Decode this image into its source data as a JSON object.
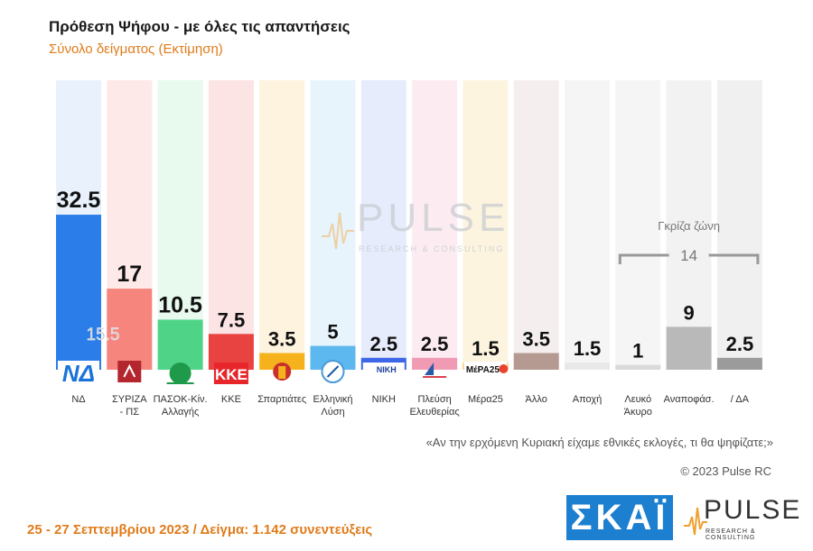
{
  "header": {
    "title": "Πρόθεση Ψήφου - με όλες τις απαντήσεις",
    "subtitle": "Σύνολο δείγματος   (Εκτίμηση)"
  },
  "chart_data": {
    "type": "bar",
    "title": "Πρόθεση Ψήφου - με όλες τις απαντήσεις",
    "subtitle": "Σύνολο δείγματος   (Εκτίμηση)",
    "categories": [
      "ΝΔ",
      "ΣΥΡΙΖΑ\n- ΠΣ",
      "ΠΑΣΟΚ-Κίν.\nΑλλαγής",
      "ΚΚΕ",
      "Σπαρτιάτες",
      "Ελληνική\nΛύση",
      "ΝΙΚΗ",
      "Πλεύση\nΕλευθερίας",
      "Μέρα25",
      "Άλλο",
      "Αποχή",
      "Λευκό\nΆκυρο",
      "Αναποφάσ.",
      "/ ΔΑ"
    ],
    "values": [
      32.5,
      17,
      10.5,
      7.5,
      3.5,
      5,
      2.5,
      2.5,
      1.5,
      3.5,
      1.5,
      1,
      9,
      2.5
    ],
    "value_labels": [
      "32.5",
      "17",
      "10.5",
      "7.5",
      "3.5",
      "5",
      "2.5",
      "2.5",
      "1.5",
      "3.5",
      "1.5",
      "1",
      "9",
      "2.5"
    ],
    "colors": [
      "#2b7de9",
      "#f5857d",
      "#4fd487",
      "#e94341",
      "#f5b21d",
      "#5cb8ef",
      "#3e67e8",
      "#f19ab4",
      "#f6b630",
      "#b59a91",
      "#e8e8e8",
      "#d9d9d9",
      "#b9b9b9",
      "#9b9b9b"
    ],
    "background_colors": [
      "#e9f1fd",
      "#fde9e8",
      "#e8f9ee",
      "#fde4e4",
      "#fdf3df",
      "#e7f4fc",
      "#e6ecfc",
      "#fcecf1",
      "#fdf4e0",
      "#f4efee",
      "#f5f5f5",
      "#f5f5f5",
      "#f2f2f2",
      "#f0f0f0"
    ],
    "ylim": [
      0,
      40
    ],
    "annotations": {
      "syriza_comparison": "15.5",
      "gray_zone_label": "Γκρίζα ζώνη",
      "gray_zone_value": "14"
    },
    "grid": false
  },
  "party_logos": [
    "ΝΔ",
    "",
    "",
    "ΚΚΕ",
    "",
    "",
    "ΝΙΚΗ",
    "",
    "ΜέΡΑ25"
  ],
  "watermark": {
    "name": "PULSE",
    "tagline": "RESEARCH & CONSULTING"
  },
  "question": "«Αν την ερχόμενη Κυριακή είχαμε εθνικές εκλογές, τι θα ψηφίζατε;»",
  "copyright": "© 2023 Pulse RC",
  "footer": "25 - 27  Σεπτεμβρίου  2023  /  Δείγμα:  1.142  συνεντεύξεις",
  "logos": {
    "skai": "ΣΚΑΪ",
    "pulse": "PULSE",
    "pulse_tagline": "RESEARCH & CONSULTING"
  }
}
